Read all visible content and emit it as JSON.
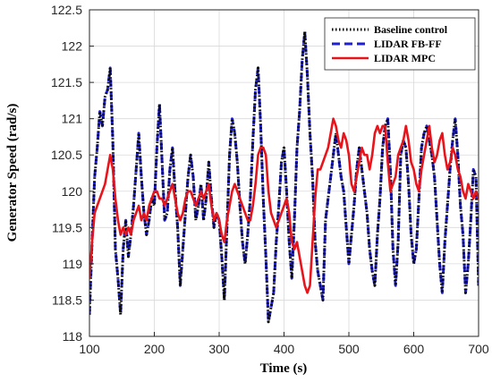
{
  "chart_data": {
    "type": "line",
    "title": "",
    "xlabel": "Time (s)",
    "ylabel": "Generator Speed (rad/s)",
    "xlim": [
      100,
      700
    ],
    "ylim": [
      118,
      122.5
    ],
    "xticks": [
      100,
      200,
      300,
      400,
      500,
      600,
      700
    ],
    "yticks": [
      118,
      118.5,
      119,
      119.5,
      120,
      120.5,
      121,
      121.5,
      122,
      122.5
    ],
    "xtick_labels": [
      "100",
      "200",
      "300",
      "400",
      "500",
      "600",
      "700"
    ],
    "ytick_labels": [
      "118",
      "118.5",
      "119",
      "119.5",
      "120",
      "120.5",
      "121",
      "121.5",
      "122",
      "122.5"
    ],
    "grid": true,
    "legend_position": "top-right",
    "series": [
      {
        "name": "Baseline control",
        "color": "#000000",
        "style": "dotted",
        "x": [
          100,
          104,
          108,
          112,
          116,
          120,
          124,
          128,
          132,
          136,
          140,
          144,
          148,
          152,
          156,
          160,
          164,
          168,
          172,
          176,
          180,
          184,
          188,
          192,
          196,
          200,
          204,
          208,
          212,
          216,
          220,
          224,
          228,
          232,
          236,
          240,
          244,
          248,
          252,
          256,
          260,
          264,
          268,
          272,
          276,
          280,
          284,
          288,
          292,
          296,
          300,
          304,
          308,
          312,
          316,
          320,
          324,
          328,
          332,
          336,
          340,
          344,
          348,
          352,
          356,
          360,
          364,
          368,
          372,
          376,
          380,
          384,
          388,
          392,
          396,
          400,
          404,
          408,
          412,
          416,
          420,
          424,
          428,
          432,
          436,
          440,
          444,
          448,
          452,
          456,
          460,
          464,
          468,
          472,
          476,
          480,
          484,
          488,
          492,
          496,
          500,
          504,
          508,
          512,
          516,
          520,
          524,
          528,
          532,
          536,
          540,
          544,
          548,
          552,
          556,
          560,
          564,
          568,
          572,
          576,
          580,
          584,
          588,
          592,
          596,
          600,
          604,
          608,
          612,
          616,
          620,
          624,
          628,
          632,
          636,
          640,
          644,
          648,
          652,
          656,
          660,
          664,
          668,
          672,
          676,
          680,
          684,
          688,
          692,
          696,
          700
        ],
        "values": [
          118.3,
          119.3,
          120.2,
          120.6,
          121.1,
          120.9,
          121.3,
          121.4,
          121.7,
          120.7,
          119.2,
          118.8,
          118.3,
          119.2,
          119.6,
          119.1,
          119.4,
          119.8,
          120.3,
          120.8,
          120.2,
          119.7,
          119.4,
          119.6,
          119.9,
          119.8,
          120.6,
          121.2,
          120.4,
          119.6,
          119.7,
          120.3,
          120.6,
          120.0,
          119.5,
          118.7,
          119.2,
          119.7,
          120.2,
          120.5,
          120.2,
          119.6,
          119.8,
          120.1,
          119.6,
          119.9,
          120.4,
          119.9,
          119.5,
          119.7,
          119.6,
          119.1,
          118.5,
          119.5,
          120.5,
          121.0,
          120.8,
          120.4,
          119.8,
          119.3,
          119.0,
          119.4,
          119.9,
          120.7,
          121.4,
          121.7,
          120.9,
          119.9,
          119.1,
          118.2,
          118.4,
          118.6,
          119.3,
          119.8,
          120.4,
          120.6,
          120.0,
          119.3,
          118.8,
          119.6,
          120.6,
          121.1,
          121.8,
          122.2,
          121.6,
          120.8,
          120.2,
          119.3,
          118.9,
          118.7,
          118.5,
          119.6,
          119.9,
          120.2,
          120.5,
          120.8,
          120.5,
          120.2,
          120.0,
          119.5,
          119.0,
          119.4,
          119.8,
          120.3,
          120.6,
          120.3,
          120.0,
          119.7,
          119.2,
          118.9,
          118.7,
          119.4,
          119.9,
          120.6,
          120.9,
          121.0,
          120.3,
          119.2,
          118.7,
          119.3,
          120.5,
          120.7,
          120.6,
          120.1,
          119.4,
          119.0,
          119.2,
          119.9,
          120.6,
          120.8,
          120.9,
          120.7,
          120.5,
          120.2,
          119.6,
          119.0,
          118.6,
          119.3,
          119.8,
          120.3,
          120.7,
          121.0,
          120.5,
          119.8,
          119.4,
          118.6,
          119.0,
          119.6,
          120.3,
          120.2,
          118.7
        ]
      },
      {
        "name": "LIDAR FB-FF",
        "color": "#1f1fd6",
        "style": "dashed",
        "x": [
          100,
          104,
          108,
          112,
          116,
          120,
          124,
          128,
          132,
          136,
          140,
          144,
          148,
          152,
          156,
          160,
          164,
          168,
          172,
          176,
          180,
          184,
          188,
          192,
          196,
          200,
          204,
          208,
          212,
          216,
          220,
          224,
          228,
          232,
          236,
          240,
          244,
          248,
          252,
          256,
          260,
          264,
          268,
          272,
          276,
          280,
          284,
          288,
          292,
          296,
          300,
          304,
          308,
          312,
          316,
          320,
          324,
          328,
          332,
          336,
          340,
          344,
          348,
          352,
          356,
          360,
          364,
          368,
          372,
          376,
          380,
          384,
          388,
          392,
          396,
          400,
          404,
          408,
          412,
          416,
          420,
          424,
          428,
          432,
          436,
          440,
          444,
          448,
          452,
          456,
          460,
          464,
          468,
          472,
          476,
          480,
          484,
          488,
          492,
          496,
          500,
          504,
          508,
          512,
          516,
          520,
          524,
          528,
          532,
          536,
          540,
          544,
          548,
          552,
          556,
          560,
          564,
          568,
          572,
          576,
          580,
          584,
          588,
          592,
          596,
          600,
          604,
          608,
          612,
          616,
          620,
          624,
          628,
          632,
          636,
          640,
          644,
          648,
          652,
          656,
          660,
          664,
          668,
          672,
          676,
          680,
          684,
          688,
          692,
          696,
          700
        ],
        "values": [
          118.3,
          119.3,
          120.2,
          120.6,
          121.1,
          120.9,
          121.3,
          121.4,
          121.7,
          120.7,
          119.2,
          118.8,
          118.3,
          119.2,
          119.6,
          119.1,
          119.4,
          119.8,
          120.3,
          120.8,
          120.2,
          119.7,
          119.4,
          119.6,
          119.9,
          119.8,
          120.6,
          121.2,
          120.4,
          119.6,
          119.7,
          120.3,
          120.6,
          120.0,
          119.5,
          118.7,
          119.2,
          119.7,
          120.2,
          120.5,
          120.2,
          119.6,
          119.8,
          120.1,
          119.6,
          119.9,
          120.4,
          119.9,
          119.5,
          119.7,
          119.6,
          119.1,
          118.5,
          119.5,
          120.5,
          121.0,
          120.8,
          120.4,
          119.8,
          119.3,
          119.0,
          119.4,
          119.9,
          120.7,
          121.4,
          121.7,
          120.9,
          119.9,
          119.1,
          118.2,
          118.4,
          118.6,
          119.3,
          119.8,
          120.4,
          120.6,
          120.0,
          119.3,
          118.8,
          119.6,
          120.6,
          121.1,
          121.8,
          122.2,
          121.6,
          120.8,
          120.2,
          119.3,
          118.9,
          118.7,
          118.5,
          119.6,
          119.9,
          120.2,
          120.5,
          120.8,
          120.5,
          120.2,
          120.0,
          119.5,
          119.0,
          119.4,
          119.8,
          120.3,
          120.6,
          120.3,
          120.0,
          119.7,
          119.2,
          118.9,
          118.7,
          119.4,
          119.9,
          120.6,
          120.9,
          121.0,
          120.3,
          119.2,
          118.7,
          119.3,
          120.5,
          120.7,
          120.6,
          120.1,
          119.4,
          119.0,
          119.2,
          119.9,
          120.6,
          120.8,
          120.9,
          120.7,
          120.5,
          120.2,
          119.6,
          119.0,
          118.6,
          119.3,
          119.8,
          120.3,
          120.7,
          121.0,
          120.5,
          119.8,
          119.4,
          118.6,
          119.0,
          119.6,
          120.3,
          120.2,
          118.7
        ]
      },
      {
        "name": "LIDAR MPC",
        "color": "#e8141b",
        "style": "solid",
        "x": [
          100,
          104,
          108,
          112,
          116,
          120,
          124,
          128,
          132,
          136,
          140,
          144,
          148,
          152,
          156,
          160,
          164,
          168,
          172,
          176,
          180,
          184,
          188,
          192,
          196,
          200,
          204,
          208,
          212,
          216,
          220,
          224,
          228,
          232,
          236,
          240,
          244,
          248,
          252,
          256,
          260,
          264,
          268,
          272,
          276,
          280,
          284,
          288,
          292,
          296,
          300,
          304,
          308,
          312,
          316,
          320,
          324,
          328,
          332,
          336,
          340,
          344,
          348,
          352,
          356,
          360,
          364,
          368,
          372,
          376,
          380,
          384,
          388,
          392,
          396,
          400,
          404,
          408,
          412,
          416,
          420,
          424,
          428,
          432,
          436,
          440,
          444,
          448,
          452,
          456,
          460,
          464,
          468,
          472,
          476,
          480,
          484,
          488,
          492,
          496,
          500,
          504,
          508,
          512,
          516,
          520,
          524,
          528,
          532,
          536,
          540,
          544,
          548,
          552,
          556,
          560,
          564,
          568,
          572,
          576,
          580,
          584,
          588,
          592,
          596,
          600,
          604,
          608,
          612,
          616,
          620,
          624,
          628,
          632,
          636,
          640,
          644,
          648,
          652,
          656,
          660,
          664,
          668,
          672,
          676,
          680,
          684,
          688,
          692,
          696,
          700
        ],
        "values": [
          118.8,
          119.3,
          119.7,
          119.8,
          119.9,
          120.0,
          120.1,
          120.3,
          120.5,
          120.3,
          119.9,
          119.6,
          119.4,
          119.5,
          119.4,
          119.5,
          119.4,
          119.6,
          119.7,
          119.8,
          119.6,
          119.7,
          119.6,
          119.8,
          119.9,
          120.0,
          120.0,
          119.9,
          119.9,
          119.8,
          119.9,
          120.0,
          120.1,
          119.9,
          119.7,
          119.6,
          119.7,
          119.9,
          120.0,
          120.0,
          119.9,
          119.8,
          119.9,
          120.0,
          119.9,
          120.0,
          120.1,
          119.8,
          119.6,
          119.7,
          119.6,
          119.4,
          119.3,
          119.6,
          119.8,
          120.0,
          120.1,
          120.0,
          119.9,
          119.8,
          119.7,
          119.6,
          119.6,
          119.8,
          120.1,
          120.5,
          120.6,
          120.6,
          120.5,
          120.0,
          119.7,
          119.6,
          119.5,
          119.6,
          119.7,
          119.8,
          119.9,
          119.7,
          119.3,
          119.2,
          119.3,
          119.1,
          118.9,
          118.7,
          118.6,
          118.7,
          119.3,
          119.9,
          120.3,
          120.3,
          120.4,
          120.5,
          120.6,
          120.8,
          121.0,
          120.9,
          120.7,
          120.6,
          120.8,
          120.7,
          120.5,
          120.1,
          120.0,
          120.2,
          120.4,
          120.6,
          120.5,
          120.5,
          120.3,
          120.5,
          120.8,
          120.9,
          120.8,
          120.9,
          120.9,
          120.4,
          120.0,
          120.1,
          120.2,
          120.5,
          120.6,
          120.7,
          120.9,
          120.7,
          120.4,
          120.3,
          120.1,
          120.0,
          120.3,
          120.5,
          120.7,
          120.9,
          120.6,
          120.4,
          120.5,
          120.7,
          120.8,
          120.5,
          120.3,
          120.4,
          120.6,
          120.5,
          120.3,
          120.2,
          120.0,
          119.9,
          120.1,
          120.0,
          119.9,
          120.0,
          119.9
        ]
      }
    ]
  }
}
